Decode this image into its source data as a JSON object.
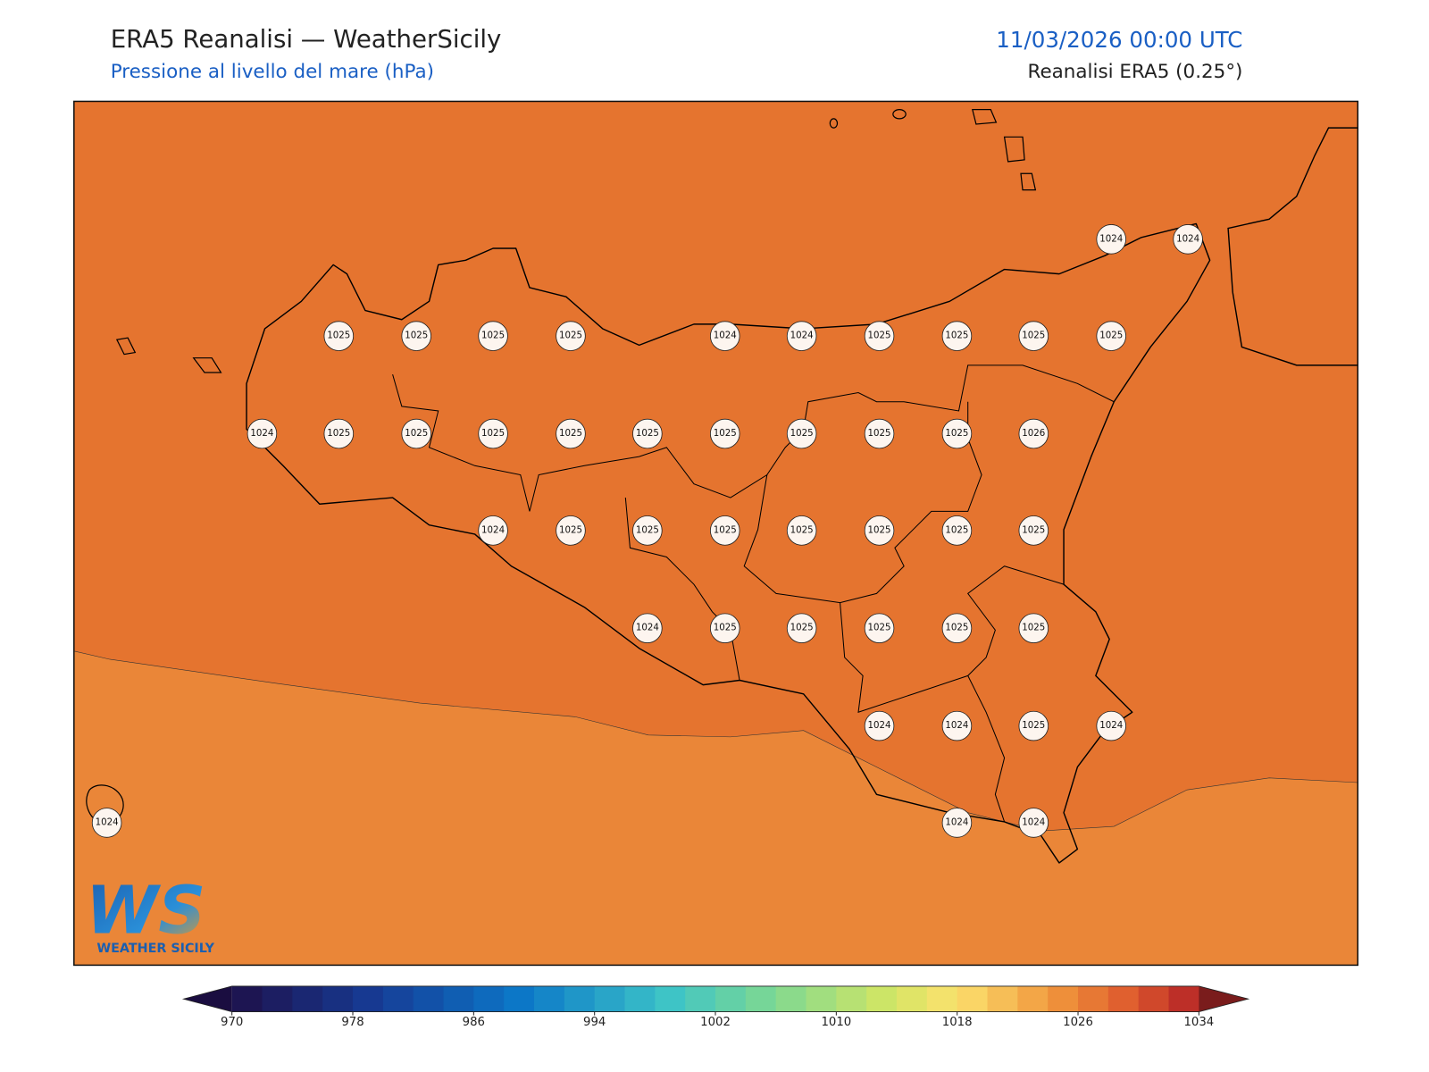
{
  "header": {
    "title": "ERA5 Reanalisi — WeatherSicily",
    "subtitle": "Pressione al livello del mare (hPa)",
    "datetime": "11/03/2026 00:00 UTC",
    "source": "Reanalisi ERA5 (0.25°)"
  },
  "stations": [
    1024,
    1024,
    1025,
    1025,
    1025,
    1025,
    1024,
    1024,
    1025,
    1025,
    1025,
    1025,
    1024,
    1025,
    1025,
    1025,
    1025,
    1025,
    1025,
    1025,
    1025,
    1025,
    1026,
    1024,
    1025,
    1025,
    1025,
    1025,
    1025,
    1025,
    1025,
    1024,
    1025,
    1025,
    1025,
    1025,
    1025,
    1024,
    1024,
    1025,
    1024,
    1024,
    1024,
    1024
  ],
  "colorbar": {
    "lim": [
      970,
      1034
    ],
    "ticks": [
      970,
      978,
      986,
      994,
      1002,
      1010,
      1018,
      1026,
      1034
    ]
  },
  "logo": {
    "letters": "WS",
    "name": "WEATHER SICILY"
  }
}
